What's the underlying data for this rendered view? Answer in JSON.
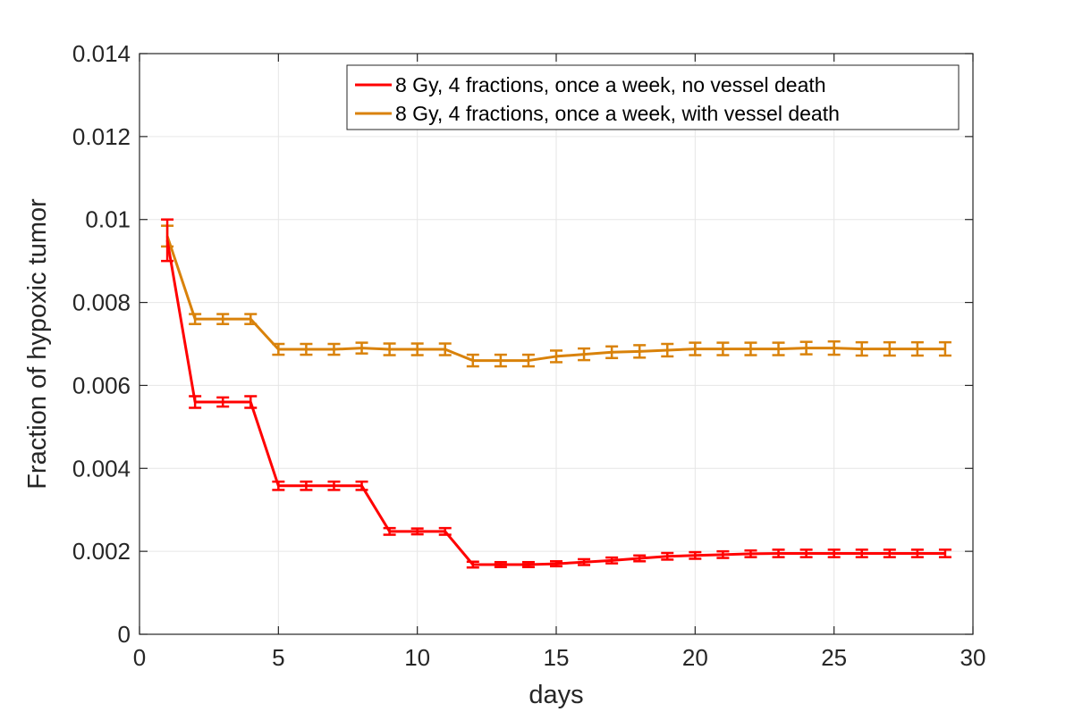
{
  "chart_data": {
    "type": "line",
    "title": "",
    "xlabel": "days",
    "ylabel": "Fraction of hypoxic tumor",
    "xlim": [
      0,
      30
    ],
    "ylim": [
      0,
      0.014
    ],
    "xticks": [
      "0",
      "5",
      "10",
      "15",
      "20",
      "25",
      "30"
    ],
    "yticks": [
      "0",
      "0.002",
      "0.004",
      "0.006",
      "0.008",
      "0.01",
      "0.012",
      "0.014"
    ],
    "grid": true,
    "legend_position": "top-right",
    "x": [
      1,
      2,
      3,
      4,
      5,
      6,
      7,
      8,
      9,
      10,
      11,
      12,
      13,
      14,
      15,
      16,
      17,
      18,
      19,
      20,
      21,
      22,
      23,
      24,
      25,
      26,
      27,
      28,
      29
    ],
    "series": [
      {
        "name": "8 Gy, 4 fractions, once a week, no vessel death",
        "color": "#ff0000",
        "values": [
          0.0095,
          0.0056,
          0.0056,
          0.0056,
          0.00358,
          0.00358,
          0.00358,
          0.00358,
          0.00248,
          0.00248,
          0.00248,
          0.00168,
          0.00168,
          0.00168,
          0.0017,
          0.00174,
          0.00178,
          0.00183,
          0.00188,
          0.0019,
          0.00192,
          0.00194,
          0.00195,
          0.00195,
          0.00195,
          0.00195,
          0.00195,
          0.00195,
          0.00195
        ],
        "errors": [
          0.0005,
          0.00014,
          0.00011,
          0.00014,
          0.0001,
          0.0001,
          0.0001,
          0.0001,
          8e-05,
          7e-05,
          8e-05,
          7e-05,
          6e-05,
          6e-05,
          6e-05,
          7e-05,
          7e-05,
          7e-05,
          8e-05,
          8e-05,
          8e-05,
          8e-05,
          9e-05,
          9e-05,
          9e-05,
          9e-05,
          9e-05,
          9e-05,
          9e-05
        ]
      },
      {
        "name": "8 Gy, 4 fractions, once a week, with vessel death",
        "color": "#d9820a",
        "values": [
          0.0096,
          0.0076,
          0.0076,
          0.0076,
          0.00687,
          0.00687,
          0.00687,
          0.0069,
          0.00687,
          0.00687,
          0.00687,
          0.0066,
          0.0066,
          0.0066,
          0.0067,
          0.00675,
          0.0068,
          0.00682,
          0.00685,
          0.00688,
          0.00688,
          0.00688,
          0.00688,
          0.0069,
          0.0069,
          0.00688,
          0.00688,
          0.00688,
          0.00688
        ],
        "errors": [
          0.00025,
          0.00012,
          0.00012,
          0.00012,
          0.00013,
          0.00013,
          0.00013,
          0.00013,
          0.00014,
          0.00014,
          0.00014,
          0.00014,
          0.00014,
          0.00014,
          0.00014,
          0.00014,
          0.00014,
          0.00015,
          0.00015,
          0.00015,
          0.00015,
          0.00015,
          0.00015,
          0.00015,
          0.00016,
          0.00016,
          0.00016,
          0.00016,
          0.00016
        ]
      }
    ]
  }
}
